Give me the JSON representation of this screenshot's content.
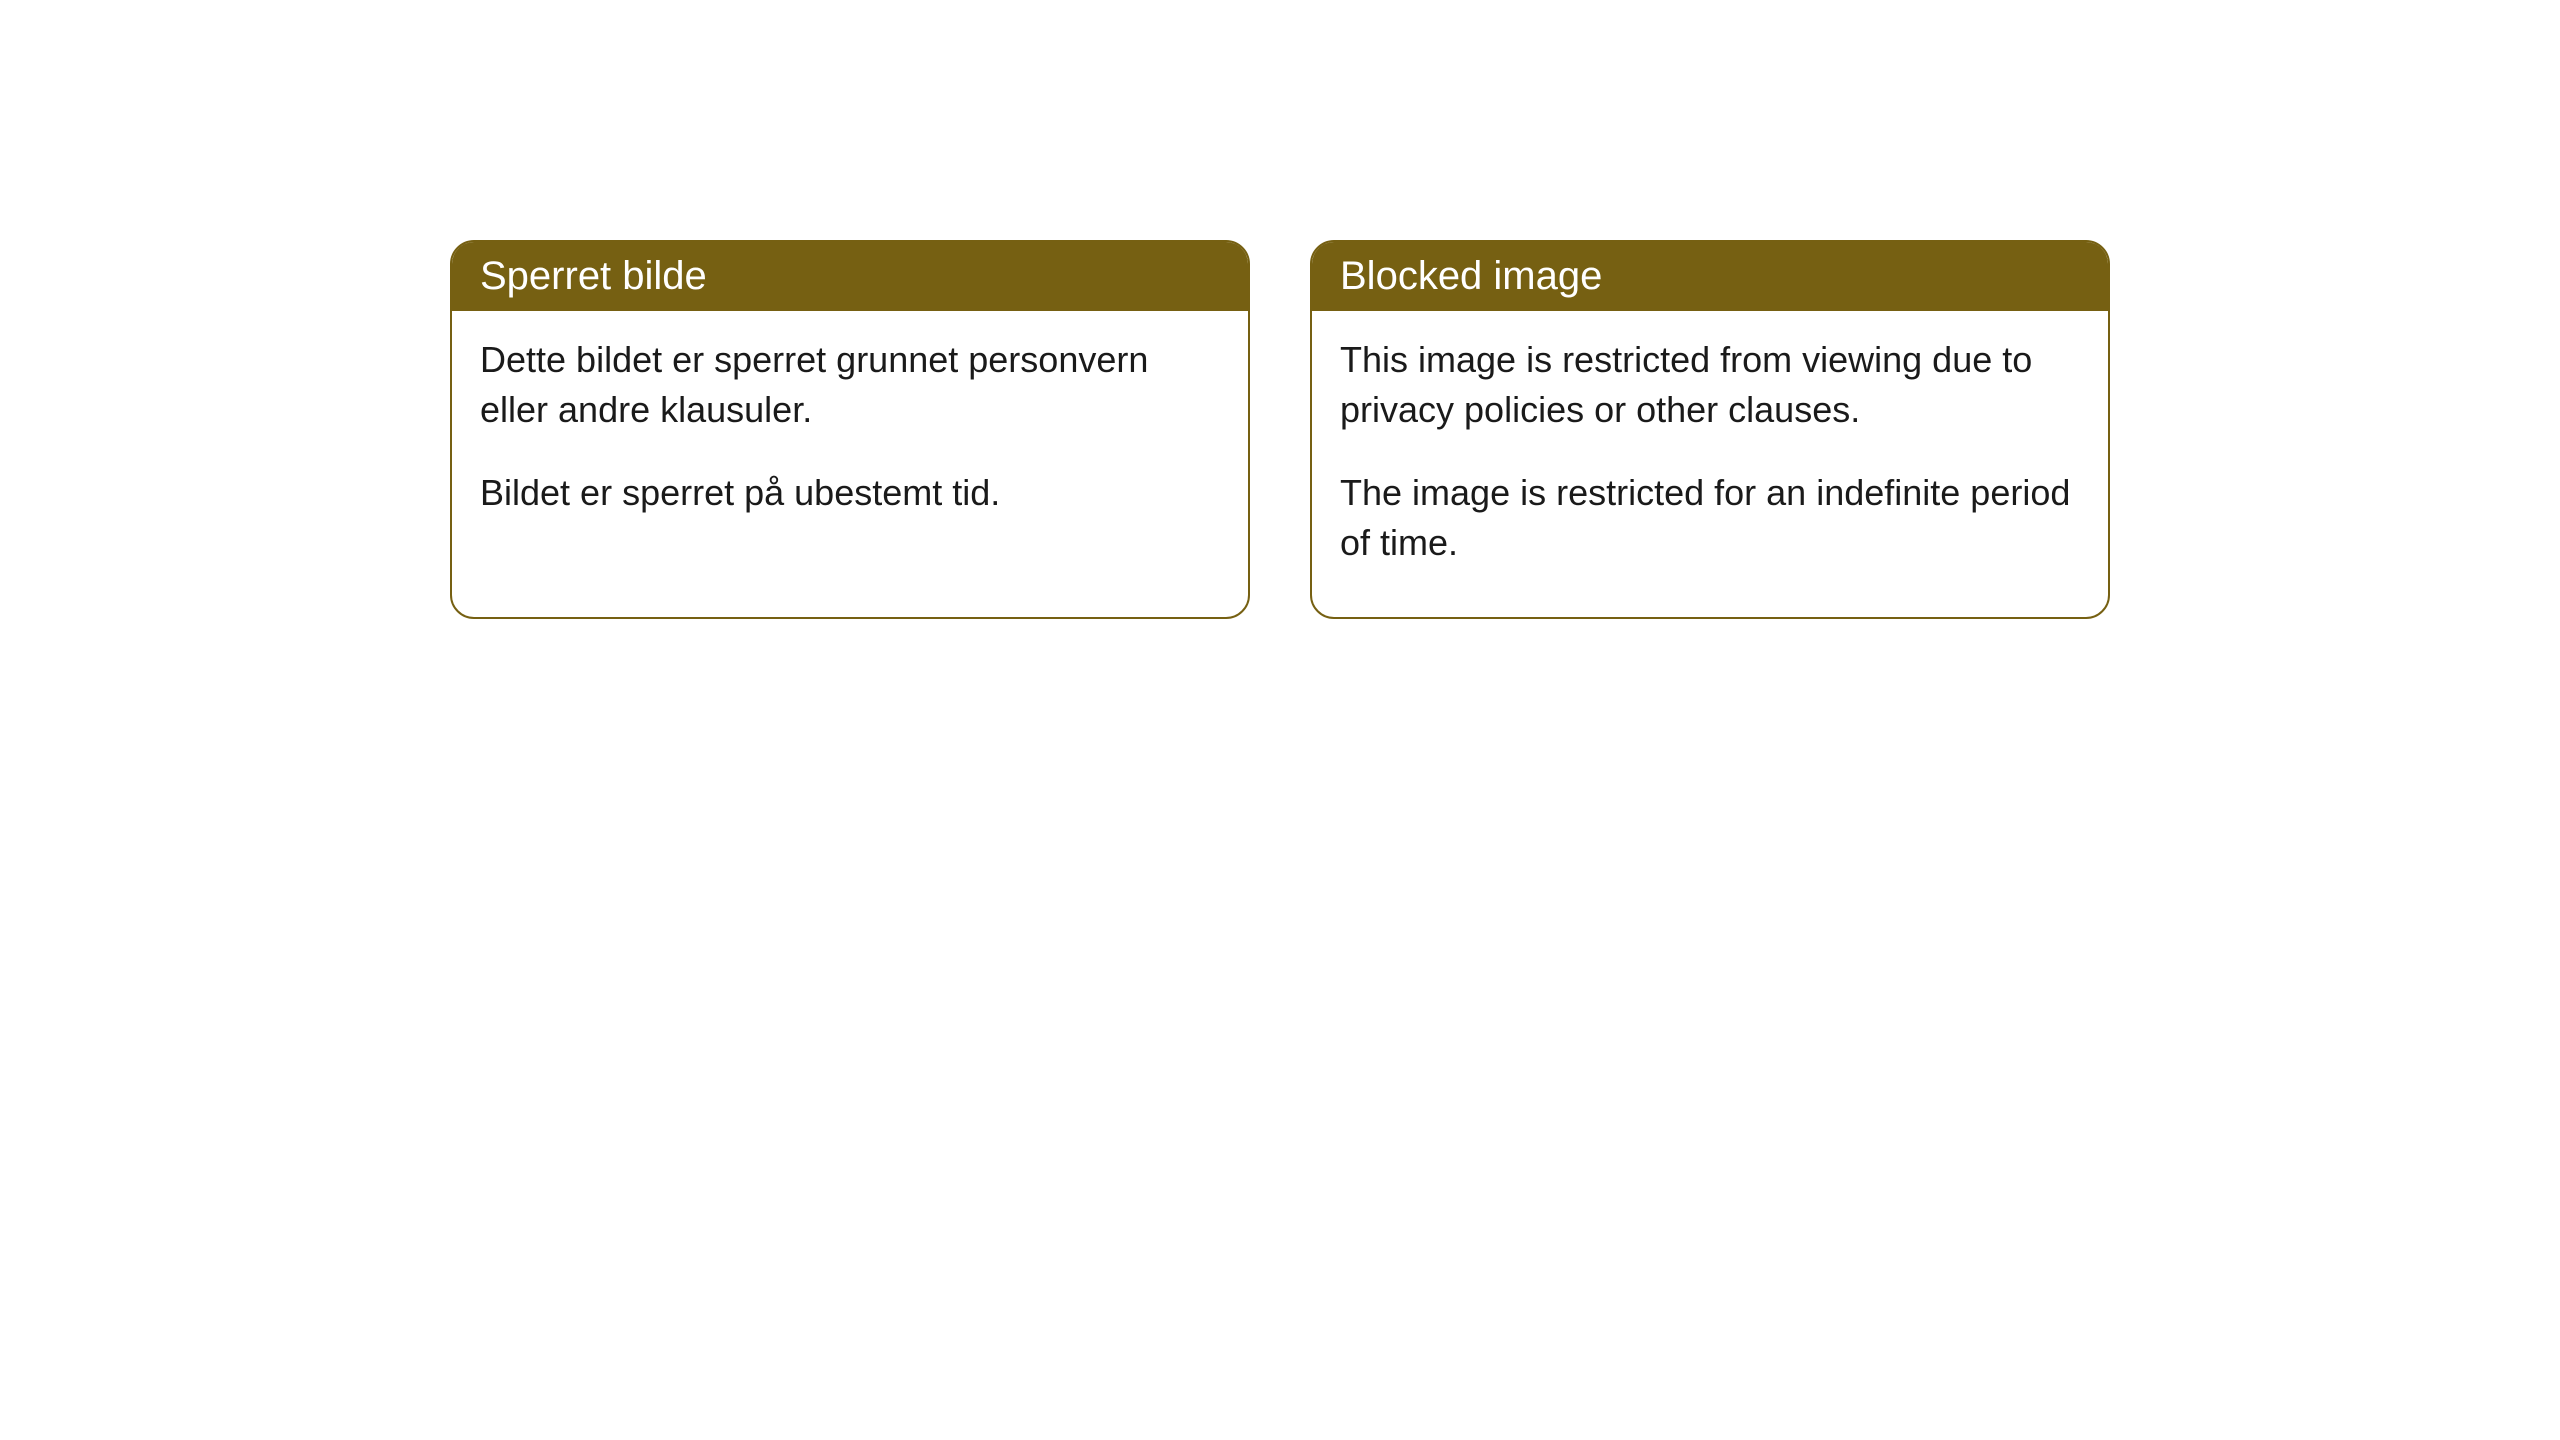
{
  "cards": [
    {
      "title": "Sperret bilde",
      "paragraph1": "Dette bildet er sperret grunnet personvern eller andre klausuler.",
      "paragraph2": "Bildet er sperret på ubestemt tid."
    },
    {
      "title": "Blocked image",
      "paragraph1": "This image is restricted from viewing due to privacy policies or other clauses.",
      "paragraph2": "The image is restricted for an indefinite period of time."
    }
  ],
  "styling": {
    "header_bg_color": "#766012",
    "header_text_color": "#ffffff",
    "border_color": "#766012",
    "body_bg_color": "#ffffff",
    "body_text_color": "#1a1a1a",
    "border_radius": 24,
    "title_fontsize": 40,
    "body_fontsize": 36
  }
}
